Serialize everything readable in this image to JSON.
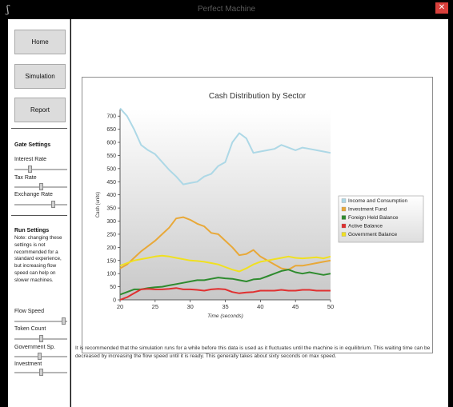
{
  "window": {
    "title": "Perfect Machine",
    "icon": "app-icon",
    "close_label": "✕"
  },
  "nav": {
    "home": "Home",
    "simulation": "Simulation",
    "report": "Report"
  },
  "gate_settings": {
    "title": "Gate Settings",
    "sliders": [
      {
        "label": "Interest Rate",
        "value": 0.28
      },
      {
        "label": "Tax Rate",
        "value": 0.5
      },
      {
        "label": "Exchange Rate",
        "value": 0.75
      }
    ]
  },
  "run_settings": {
    "title": "Run Settings",
    "note": "Note: changing these settings is not recommended for a standard experience, but increasing flow speed can help on slower machines.",
    "sliders": [
      {
        "label": "Flow Speed",
        "value": 0.97
      },
      {
        "label": "Token Count",
        "value": 0.5
      },
      {
        "label": "Government Sp.",
        "value": 0.48
      },
      {
        "label": "Investment",
        "value": 0.5
      }
    ]
  },
  "info_text": "It is recommended that the simulation runs for a while before this data is used as it fluctuates until the machine is in equilibrium. This waiting time can be decreased by increasing the flow speed until it is ready. This generally takes about sixty seconds on max speed.",
  "chart_data": {
    "type": "line",
    "title": "Cash Distribution by Sector",
    "xlabel": "Time (seconds)",
    "ylabel": "Cash (units)",
    "xlim": [
      20,
      50
    ],
    "ylim": [
      0,
      725
    ],
    "xticks": [
      20,
      25,
      30,
      35,
      40,
      45,
      50
    ],
    "yticks": [
      0,
      50,
      100,
      150,
      200,
      250,
      300,
      350,
      400,
      450,
      500,
      550,
      600,
      650,
      700
    ],
    "legend": "right",
    "x": [
      20,
      21,
      22,
      23,
      24,
      25,
      26,
      27,
      28,
      29,
      30,
      31,
      32,
      33,
      34,
      35,
      36,
      37,
      38,
      39,
      40,
      41,
      42,
      43,
      44,
      45,
      46,
      47,
      48,
      49,
      50
    ],
    "series": [
      {
        "name": "Income and Consumption",
        "color": "#add8e6",
        "values": [
          730,
          700,
          650,
          590,
          570,
          555,
          525,
          495,
          470,
          440,
          445,
          450,
          470,
          480,
          510,
          525,
          600,
          635,
          615,
          560,
          565,
          570,
          575,
          590,
          580,
          570,
          580,
          575,
          570,
          565,
          560
        ]
      },
      {
        "name": "Investment Fund",
        "color": "#e8a838",
        "values": [
          120,
          135,
          160,
          185,
          205,
          225,
          250,
          275,
          310,
          315,
          305,
          290,
          280,
          255,
          250,
          225,
          200,
          170,
          175,
          190,
          165,
          150,
          135,
          120,
          115,
          130,
          130,
          135,
          140,
          145,
          150
        ]
      },
      {
        "name": "Foreign Held Balance",
        "color": "#2e8b2e",
        "values": [
          20,
          30,
          40,
          40,
          45,
          48,
          50,
          55,
          60,
          65,
          70,
          75,
          75,
          80,
          85,
          82,
          80,
          75,
          70,
          78,
          80,
          90,
          100,
          110,
          115,
          105,
          100,
          105,
          100,
          95,
          100
        ]
      },
      {
        "name": "Active Balance",
        "color": "#e03030",
        "values": [
          0,
          10,
          25,
          40,
          42,
          40,
          40,
          42,
          45,
          40,
          40,
          38,
          35,
          40,
          42,
          40,
          30,
          25,
          28,
          30,
          35,
          35,
          35,
          38,
          35,
          35,
          38,
          38,
          35,
          35,
          35
        ]
      },
      {
        "name": "Government Balance",
        "color": "#f0e020",
        "values": [
          130,
          140,
          150,
          155,
          160,
          165,
          168,
          165,
          160,
          155,
          150,
          148,
          145,
          140,
          135,
          125,
          115,
          108,
          120,
          135,
          145,
          150,
          155,
          160,
          165,
          160,
          158,
          160,
          162,
          158,
          165
        ]
      }
    ]
  }
}
